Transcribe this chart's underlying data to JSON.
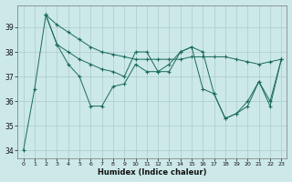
{
  "xlabel": "Humidex (Indice chaleur)",
  "xlim_min": -0.5,
  "xlim_max": 23.5,
  "ylim_min": 33.7,
  "ylim_max": 39.9,
  "yticks": [
    34,
    35,
    36,
    37,
    38,
    39
  ],
  "xticks": [
    0,
    1,
    2,
    3,
    4,
    5,
    6,
    7,
    8,
    9,
    10,
    11,
    12,
    13,
    14,
    15,
    16,
    17,
    18,
    19,
    20,
    21,
    22,
    23
  ],
  "background_color": "#cce8e8",
  "grid_color": "#aacccc",
  "line_color": "#1a6b5a",
  "line1_x": [
    0,
    1,
    2,
    3,
    4,
    5,
    6,
    7,
    8,
    9,
    10,
    11,
    12,
    13,
    14,
    15,
    16,
    17,
    18,
    19,
    20,
    21,
    22,
    23
  ],
  "line1_y": [
    34.0,
    36.5,
    39.5,
    38.3,
    37.5,
    37.0,
    35.8,
    35.8,
    36.6,
    36.7,
    37.5,
    37.2,
    37.2,
    37.2,
    38.0,
    38.2,
    36.5,
    36.3,
    35.3,
    35.5,
    36.0,
    36.8,
    35.8,
    37.7
  ],
  "line2_x": [
    2,
    3,
    4,
    5,
    6,
    7,
    8,
    9,
    10,
    11,
    12,
    13,
    14,
    15,
    16,
    17,
    18,
    19,
    20,
    21,
    22,
    23
  ],
  "line2_y": [
    39.5,
    39.1,
    38.8,
    38.5,
    38.2,
    38.0,
    37.9,
    37.8,
    37.7,
    37.7,
    37.7,
    37.7,
    37.7,
    37.8,
    37.8,
    37.8,
    37.8,
    37.7,
    37.6,
    37.5,
    37.6,
    37.7
  ],
  "line3_x": [
    2,
    3,
    4,
    5,
    6,
    7,
    8,
    9,
    10,
    11,
    12,
    13,
    14,
    15,
    16,
    17,
    18,
    19,
    20,
    21,
    22,
    23
  ],
  "line3_y": [
    39.5,
    38.3,
    38.0,
    37.7,
    37.5,
    37.3,
    37.2,
    37.0,
    38.0,
    38.0,
    37.2,
    37.5,
    38.0,
    38.2,
    38.0,
    36.3,
    35.3,
    35.5,
    35.8,
    36.8,
    36.0,
    37.7
  ]
}
